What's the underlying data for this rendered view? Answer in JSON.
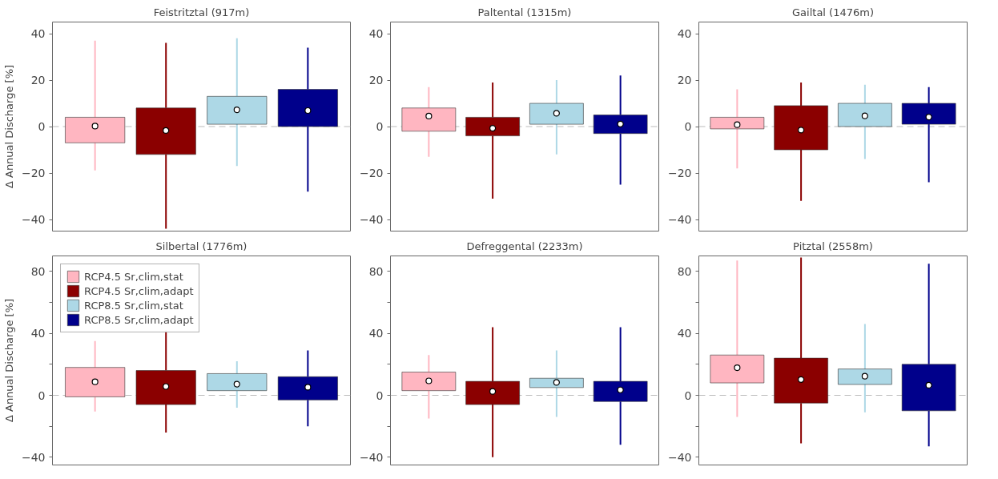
{
  "chart_data": [
    {
      "type": "box",
      "title": "Feistritztal (917m)",
      "ylabel": "Δ Annual Discharge [%]",
      "categories": [
        null,
        null,
        null,
        null
      ],
      "ylim": [
        -45,
        45
      ],
      "yticks": [
        -40,
        -20,
        0,
        20,
        40
      ],
      "tick_labels": "y",
      "grid": false,
      "ref_lines": [
        {
          "axis": "y",
          "value": 0,
          "color": "#bbbbbb",
          "line_style": "dashed"
        }
      ],
      "series": [
        {
          "color": "#ffb6c1",
          "boxes": [
            {
              "low": -18.9,
              "q1": -7,
              "median": 0.2,
              "q3": 4,
              "high": 37
            },
            null,
            null,
            null
          ]
        },
        {
          "color": "#8b0000",
          "boxes": [
            null,
            {
              "low": -44,
              "q1": -12,
              "median": -1.7,
              "q3": 8,
              "high": 36
            },
            null,
            null
          ]
        },
        {
          "color": "#add8e6",
          "boxes": [
            null,
            null,
            {
              "low": -17,
              "q1": 1,
              "median": 7.2,
              "q3": 13,
              "high": 38
            },
            null
          ]
        },
        {
          "color": "#00008b",
          "boxes": [
            null,
            null,
            null,
            {
              "low": -28,
              "q1": 0,
              "median": 6.9,
              "q3": 16,
              "high": 34
            }
          ]
        }
      ]
    },
    {
      "type": "box",
      "title": "Paltental (1315m)",
      "categories": [
        null,
        null,
        null,
        null
      ],
      "ylim": [
        -45,
        45
      ],
      "yticks": [
        -40,
        -20,
        0,
        20,
        40
      ],
      "tick_labels": "y",
      "grid": false,
      "ref_lines": [
        {
          "axis": "y",
          "value": 0,
          "color": "#bbbbbb",
          "line_style": "dashed"
        }
      ],
      "series": [
        {
          "color": "#ffb6c1",
          "boxes": [
            {
              "low": -13,
              "q1": -2,
              "median": 4.5,
              "q3": 8,
              "high": 17
            },
            null,
            null,
            null
          ]
        },
        {
          "color": "#8b0000",
          "boxes": [
            null,
            {
              "low": -31,
              "q1": -4,
              "median": -0.7,
              "q3": 4,
              "high": 19
            },
            null,
            null
          ]
        },
        {
          "color": "#add8e6",
          "boxes": [
            null,
            null,
            {
              "low": -12,
              "q1": 1,
              "median": 5.7,
              "q3": 10,
              "high": 20
            },
            null
          ]
        },
        {
          "color": "#00008b",
          "boxes": [
            null,
            null,
            null,
            {
              "low": -25,
              "q1": -3,
              "median": 1.1,
              "q3": 5,
              "high": 22
            }
          ]
        }
      ]
    },
    {
      "type": "box",
      "title": "Gailtal (1476m)",
      "categories": [
        null,
        null,
        null,
        null
      ],
      "ylim": [
        -45,
        45
      ],
      "yticks": [
        -40,
        -20,
        0,
        20,
        40
      ],
      "tick_labels": "y",
      "grid": false,
      "ref_lines": [
        {
          "axis": "y",
          "value": 0,
          "color": "#bbbbbb",
          "line_style": "dashed"
        }
      ],
      "series": [
        {
          "color": "#ffb6c1",
          "boxes": [
            {
              "low": -18,
              "q1": -1,
              "median": 0.8,
              "q3": 4,
              "high": 16
            },
            null,
            null,
            null
          ]
        },
        {
          "color": "#8b0000",
          "boxes": [
            null,
            {
              "low": -32,
              "q1": -10,
              "median": -1.5,
              "q3": 9,
              "high": 19
            },
            null,
            null
          ]
        },
        {
          "color": "#add8e6",
          "boxes": [
            null,
            null,
            {
              "low": -14,
              "q1": 0,
              "median": 4.6,
              "q3": 10,
              "high": 18
            },
            null
          ]
        },
        {
          "color": "#00008b",
          "boxes": [
            null,
            null,
            null,
            {
              "low": -24,
              "q1": 1,
              "median": 4.1,
              "q3": 10,
              "high": 17
            }
          ]
        }
      ]
    },
    {
      "type": "box",
      "title": "Silbertal (1776m)",
      "ylabel": "Δ Annual Discharge [%]",
      "categories": [
        null,
        null,
        null,
        null
      ],
      "ylim": [
        -45,
        90
      ],
      "yticks": [
        -40,
        {
          "value": -20,
          "label": null
        },
        0,
        {
          "value": 20,
          "label": null
        },
        40,
        {
          "value": 60,
          "label": null
        },
        80
      ],
      "tick_labels": "y",
      "grid": false,
      "legend": "top left",
      "ref_lines": [
        {
          "axis": "y",
          "value": 0,
          "color": "#bbbbbb",
          "line_style": "dashed"
        }
      ],
      "series": [
        {
          "name": "RCP4.5 Sr,clim,stat",
          "color": "#ffb6c1",
          "boxes": [
            {
              "low": -10.5,
              "q1": -1,
              "median": 8.7,
              "q3": 18,
              "high": 35
            },
            null,
            null,
            null
          ]
        },
        {
          "name": "RCP4.5 Sr,clim,adapt",
          "color": "#8b0000",
          "boxes": [
            null,
            {
              "low": -24,
              "q1": -6,
              "median": 5.7,
              "q3": 16,
              "high": 42
            },
            null,
            null
          ]
        },
        {
          "name": "RCP8.5 Sr,clim,stat",
          "color": "#add8e6",
          "boxes": [
            null,
            null,
            {
              "low": -8,
              "q1": 3,
              "median": 7.2,
              "q3": 14,
              "high": 22
            },
            null
          ]
        },
        {
          "name": "RCP8.5 Sr,clim,adapt",
          "color": "#00008b",
          "boxes": [
            null,
            null,
            null,
            {
              "low": -20,
              "q1": -3,
              "median": 5.2,
              "q3": 12,
              "high": 29
            }
          ]
        }
      ]
    },
    {
      "type": "box",
      "title": "Defreggental (2233m)",
      "categories": [
        null,
        null,
        null,
        null
      ],
      "ylim": [
        -45,
        90
      ],
      "yticks": [
        -40,
        {
          "value": -20,
          "label": null
        },
        0,
        {
          "value": 20,
          "label": null
        },
        40,
        {
          "value": 60,
          "label": null
        },
        80
      ],
      "tick_labels": "y",
      "grid": false,
      "ref_lines": [
        {
          "axis": "y",
          "value": 0,
          "color": "#bbbbbb",
          "line_style": "dashed"
        }
      ],
      "series": [
        {
          "color": "#ffb6c1",
          "boxes": [
            {
              "low": -15,
              "q1": 3,
              "median": 9.3,
              "q3": 15,
              "high": 26
            },
            null,
            null,
            null
          ]
        },
        {
          "color": "#8b0000",
          "boxes": [
            null,
            {
              "low": -40,
              "q1": -6,
              "median": 2.5,
              "q3": 9,
              "high": 44
            },
            null,
            null
          ]
        },
        {
          "color": "#add8e6",
          "boxes": [
            null,
            null,
            {
              "low": -14,
              "q1": 5,
              "median": 8.3,
              "q3": 11,
              "high": 29
            },
            null
          ]
        },
        {
          "color": "#00008b",
          "boxes": [
            null,
            null,
            null,
            {
              "low": -32,
              "q1": -4,
              "median": 3.5,
              "q3": 9,
              "high": 44
            }
          ]
        }
      ]
    },
    {
      "type": "box",
      "title": "Pitztal (2558m)",
      "categories": [
        null,
        null,
        null,
        null
      ],
      "ylim": [
        -45,
        90
      ],
      "yticks": [
        -40,
        {
          "value": -20,
          "label": null
        },
        0,
        {
          "value": 20,
          "label": null
        },
        40,
        {
          "value": 60,
          "label": null
        },
        80
      ],
      "tick_labels": "y",
      "grid": false,
      "ref_lines": [
        {
          "axis": "y",
          "value": 0,
          "color": "#bbbbbb",
          "line_style": "dashed"
        }
      ],
      "series": [
        {
          "color": "#ffb6c1",
          "boxes": [
            {
              "low": -14,
              "q1": 8,
              "median": 17.8,
              "q3": 26,
              "high": 87
            },
            null,
            null,
            null
          ]
        },
        {
          "color": "#8b0000",
          "boxes": [
            null,
            {
              "low": -31,
              "q1": -5,
              "median": 10.2,
              "q3": 24,
              "high": 89
            },
            null,
            null
          ]
        },
        {
          "color": "#add8e6",
          "boxes": [
            null,
            null,
            {
              "low": -11,
              "q1": 7,
              "median": 12.3,
              "q3": 17,
              "high": 46
            },
            null
          ]
        },
        {
          "color": "#00008b",
          "boxes": [
            null,
            null,
            null,
            {
              "low": -33,
              "q1": -10,
              "median": 6.5,
              "q3": 20,
              "high": 85
            }
          ]
        }
      ]
    }
  ]
}
